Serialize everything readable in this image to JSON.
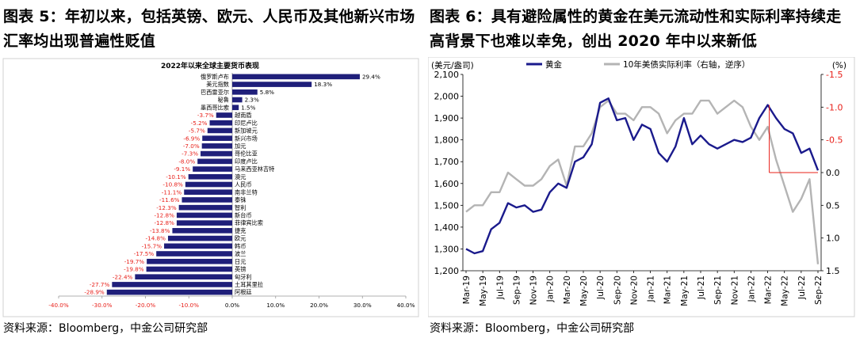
{
  "left": {
    "figure_title": "图表 5：年初以来，包括英镑、欧元、人民币及其他新兴市场汇率均出现普遍性贬值",
    "source": "资料来源：Bloomberg，中金公司研究部"
  },
  "right": {
    "figure_title": "图表 6：具有避险属性的黄金在美元流动性和实际利率持续走高背景下也难以幸免，创出 2020 年中以来新低",
    "source": "资料来源：Bloomberg，中金公司研究部"
  },
  "chart_data": [
    {
      "type": "bar",
      "orientation": "horizontal",
      "title": "2022年以来全球主要货币表现",
      "categories": [
        "俄罗斯卢布",
        "美元指数",
        "巴西雷亚尔",
        "秘鲁",
        "墨西哥比索",
        "越南盾",
        "印尼卢比",
        "新加坡元",
        "新兴市场",
        "加元",
        "哥伦比亚",
        "印度卢比",
        "马来西亚林吉特",
        "澳元",
        "人民币",
        "南非兰特",
        "泰铢",
        "智利",
        "新台币",
        "菲律宾比索",
        "捷克",
        "欧元",
        "韩币",
        "波兰",
        "日元",
        "英镑",
        "匈牙利",
        "土耳其里拉",
        "阿根廷"
      ],
      "values": [
        29.4,
        18.3,
        5.8,
        2.3,
        1.5,
        -3.7,
        -5.2,
        -5.7,
        -6.9,
        -7.0,
        -7.3,
        -8.0,
        -9.1,
        -10.1,
        -10.8,
        -11.1,
        -11.6,
        -12.3,
        -12.8,
        -12.8,
        -13.8,
        -14.8,
        -15.7,
        -17.5,
        -19.7,
        -19.8,
        -22.4,
        -27.7,
        -28.9
      ],
      "value_labels": [
        "29.4%",
        "18.3%",
        "5.8%",
        "2.3%",
        "1.5%",
        "-3.7%",
        "-5.2%",
        "-5.7%",
        "-6.9%",
        "-7.0%",
        "-7.3%",
        "-8.0%",
        "-9.1%",
        "-10.1%",
        "-10.8%",
        "-11.1%",
        "-11.6%",
        "-12.3%",
        "-12.8%",
        "-12.8%",
        "-13.8%",
        "-14.8%",
        "-15.7%",
        "-17.5%",
        "-19.7%",
        "-19.8%",
        "-22.4%",
        "-27.7%",
        "-28.9%"
      ],
      "x_ticks": [
        "-40.0%",
        "-30.0%",
        "-20.0%",
        "-10.0%",
        "0.0%",
        "10.0%",
        "20.0%",
        "30.0%",
        "40.0%"
      ],
      "xlim": [
        -40,
        40
      ],
      "colors": {
        "bar": "#1f1f7a",
        "positive_label": "#000000",
        "negative_label": "#e8201a"
      }
    },
    {
      "type": "line",
      "legend": [
        "黄金",
        "10年美债实际利率（右轴，逆序）"
      ],
      "left_axis_unit": "(美元/盎司)",
      "right_axis_unit": "(%)",
      "y_ticks": [
        "1,200",
        "1,300",
        "1,400",
        "1,500",
        "1,600",
        "1,700",
        "1,800",
        "1,900",
        "2,000",
        "2,100"
      ],
      "ylim": [
        1200,
        2100
      ],
      "y2_ticks": [
        "-1.5",
        "-1.0",
        "-0.5",
        "0.0",
        "0.5",
        "1.0",
        "1.5"
      ],
      "y2lim": [
        1.5,
        -1.5
      ],
      "y2_inverted": true,
      "x_ticks": [
        "Mar-19",
        "May-19",
        "Jul-19",
        "Sep-19",
        "Nov-19",
        "Jan-20",
        "Mar-20",
        "May-20",
        "Jul-20",
        "Sep-20",
        "Nov-20",
        "Jan-21",
        "Mar-21",
        "May-21",
        "Jul-21",
        "Sep-21",
        "Nov-21",
        "Jan-22",
        "Mar-22",
        "May-22",
        "Jul-22",
        "Sep-22"
      ],
      "series": [
        {
          "name": "黄金",
          "color": "#1a1a8c",
          "axis": "left",
          "x": [
            "Mar-19",
            "Apr-19",
            "May-19",
            "Jun-19",
            "Jul-19",
            "Aug-19",
            "Sep-19",
            "Oct-19",
            "Nov-19",
            "Dec-19",
            "Jan-20",
            "Feb-20",
            "Mar-20",
            "Apr-20",
            "May-20",
            "Jun-20",
            "Jul-20",
            "Aug-20",
            "Sep-20",
            "Oct-20",
            "Nov-20",
            "Dec-20",
            "Jan-21",
            "Feb-21",
            "Mar-21",
            "Apr-21",
            "May-21",
            "Jun-21",
            "Jul-21",
            "Aug-21",
            "Sep-21",
            "Oct-21",
            "Nov-21",
            "Dec-21",
            "Jan-22",
            "Feb-22",
            "Mar-22",
            "Apr-22",
            "May-22",
            "Jun-22",
            "Jul-22",
            "Aug-22",
            "Sep-22"
          ],
          "values": [
            1300,
            1280,
            1290,
            1390,
            1420,
            1510,
            1490,
            1500,
            1470,
            1480,
            1560,
            1600,
            1580,
            1700,
            1720,
            1780,
            1970,
            1990,
            1890,
            1900,
            1800,
            1870,
            1850,
            1740,
            1700,
            1770,
            1900,
            1780,
            1820,
            1780,
            1760,
            1780,
            1800,
            1790,
            1810,
            1900,
            1960,
            1900,
            1850,
            1830,
            1740,
            1760,
            1660
          ]
        },
        {
          "name": "10年美债实际利率（右轴，逆序）",
          "color": "#b4b4b4",
          "axis": "right",
          "x": [
            "Mar-19",
            "Apr-19",
            "May-19",
            "Jun-19",
            "Jul-19",
            "Aug-19",
            "Sep-19",
            "Oct-19",
            "Nov-19",
            "Dec-19",
            "Jan-20",
            "Feb-20",
            "Mar-20",
            "Apr-20",
            "May-20",
            "Jun-20",
            "Jul-20",
            "Aug-20",
            "Sep-20",
            "Oct-20",
            "Nov-20",
            "Dec-20",
            "Jan-21",
            "Feb-21",
            "Mar-21",
            "Apr-21",
            "May-21",
            "Jun-21",
            "Jul-21",
            "Aug-21",
            "Sep-21",
            "Oct-21",
            "Nov-21",
            "Dec-21",
            "Jan-22",
            "Feb-22",
            "Mar-22",
            "Apr-22",
            "May-22",
            "Jun-22",
            "Jul-22",
            "Aug-22",
            "Sep-22"
          ],
          "values": [
            0.6,
            0.5,
            0.5,
            0.3,
            0.3,
            0.0,
            0.1,
            0.2,
            0.2,
            0.1,
            -0.1,
            -0.2,
            0.2,
            -0.4,
            -0.4,
            -0.6,
            -1.0,
            -1.1,
            -0.9,
            -0.9,
            -0.8,
            -1.0,
            -1.0,
            -0.9,
            -0.6,
            -0.8,
            -0.9,
            -0.9,
            -1.1,
            -1.1,
            -0.9,
            -1.0,
            -1.1,
            -1.0,
            -0.7,
            -0.5,
            -0.7,
            -0.2,
            0.2,
            0.6,
            0.4,
            0.1,
            1.4
          ]
        }
      ],
      "annotation": "red bracket marking decline from Mar-22 peak to 0.0 level",
      "colors": {
        "annotation": "#e8201a"
      }
    }
  ]
}
